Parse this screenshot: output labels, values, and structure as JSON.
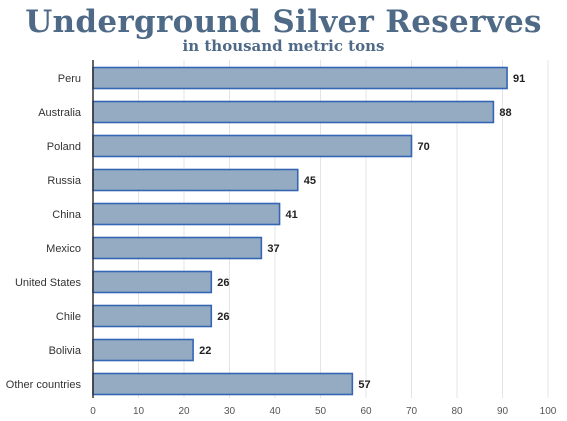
{
  "chart_data": {
    "type": "bar",
    "orientation": "horizontal",
    "title": "Underground Silver Reserves",
    "subtitle": "in thousand metric tons",
    "categories": [
      "Peru",
      "Australia",
      "Poland",
      "Russia",
      "China",
      "Mexico",
      "United States",
      "Chile",
      "Bolivia",
      "Other countries"
    ],
    "values": [
      91,
      88,
      70,
      45,
      41,
      37,
      26,
      26,
      22,
      57
    ],
    "xlim": [
      0,
      100
    ],
    "xticks": [
      "0",
      "10",
      "20",
      "30",
      "40",
      "50",
      "60",
      "70",
      "80",
      "90",
      "100"
    ],
    "grid": true,
    "colors": {
      "bar_fill": "#94abc2",
      "bar_stroke": "#3566b3",
      "title": "#4e6a87",
      "grid": "#e4e4e4"
    }
  }
}
